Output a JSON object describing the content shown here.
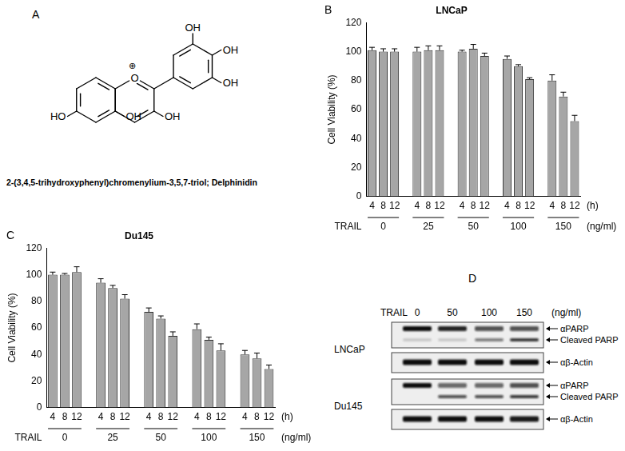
{
  "structure": {
    "panel": "A",
    "substituents": [
      "OH",
      "OH",
      "OH",
      "HO",
      "OH",
      "OH"
    ],
    "ring_oxygen": "O",
    "charge": "⊕",
    "name": "2-(3,4,5-trihydroxyphenyl)chromenylium-3,5,7-triol; Delphinidin"
  },
  "chart_data": [
    {
      "panel": "B",
      "type": "bar",
      "title": "LNCaP",
      "categories": [
        "4",
        "8",
        "12",
        null,
        "4",
        "8",
        "12",
        null,
        "4",
        "8",
        "12",
        null,
        "4",
        "8",
        "12",
        null,
        "4",
        "8",
        "12"
      ],
      "values": [
        101,
        100,
        100,
        null,
        100,
        101,
        101,
        null,
        100,
        102,
        97,
        null,
        95,
        90,
        81,
        null,
        80,
        69,
        52
      ],
      "errors": [
        2,
        2,
        2,
        null,
        3,
        3,
        3,
        null,
        1,
        3,
        2,
        null,
        2,
        1,
        1,
        null,
        4,
        3,
        4
      ],
      "color": "#a6a6a6",
      "xlabel": "(h)",
      "groups": [
        "0",
        "25",
        "50",
        "100",
        "150"
      ],
      "group_label": "TRAIL",
      "group_unit": "(ng/ml)",
      "ylabel": "Cell Viability (%)",
      "ylim": [
        0,
        120
      ],
      "yticks": [
        0,
        20,
        40,
        60,
        80,
        100,
        120
      ],
      "grid": false
    },
    {
      "panel": "C",
      "type": "bar",
      "title": "Du145",
      "categories": [
        "4",
        "8",
        "12",
        null,
        "4",
        "8",
        "12",
        null,
        "4",
        "8",
        "12",
        null,
        "4",
        "8",
        "12",
        null,
        "4",
        "8",
        "12"
      ],
      "values": [
        100,
        100,
        102,
        null,
        94,
        90,
        82,
        null,
        72,
        67,
        54,
        null,
        59,
        51,
        43,
        null,
        40,
        37,
        29
      ],
      "errors": [
        2,
        1,
        4,
        null,
        3,
        2,
        3,
        null,
        3,
        2,
        3,
        null,
        4,
        2,
        5,
        null,
        3,
        4,
        3
      ],
      "color": "#a6a6a6",
      "xlabel": "(h)",
      "groups": [
        "0",
        "25",
        "50",
        "100",
        "150"
      ],
      "group_label": "TRAIL",
      "group_unit": "(ng/ml)",
      "ylabel": "Cell Viability (%)",
      "ylim": [
        0,
        120
      ],
      "yticks": [
        0,
        20,
        40,
        60,
        80,
        100,
        120
      ],
      "grid": false
    }
  ],
  "blot": {
    "panel": "D",
    "treatment": "TRAIL",
    "unit": "(ng/ml)",
    "lanes": [
      "0",
      "50",
      "100",
      "150"
    ],
    "cell_lines": [
      {
        "name": "LNCaP",
        "rows": [
          [
            "αPARP",
            "Cleaved PARP"
          ],
          [
            "αβ-Actin"
          ]
        ]
      },
      {
        "name": "Du145",
        "rows": [
          [
            "αPARP",
            "Cleaved PARP"
          ],
          [
            "αβ-Actin"
          ]
        ]
      }
    ]
  }
}
